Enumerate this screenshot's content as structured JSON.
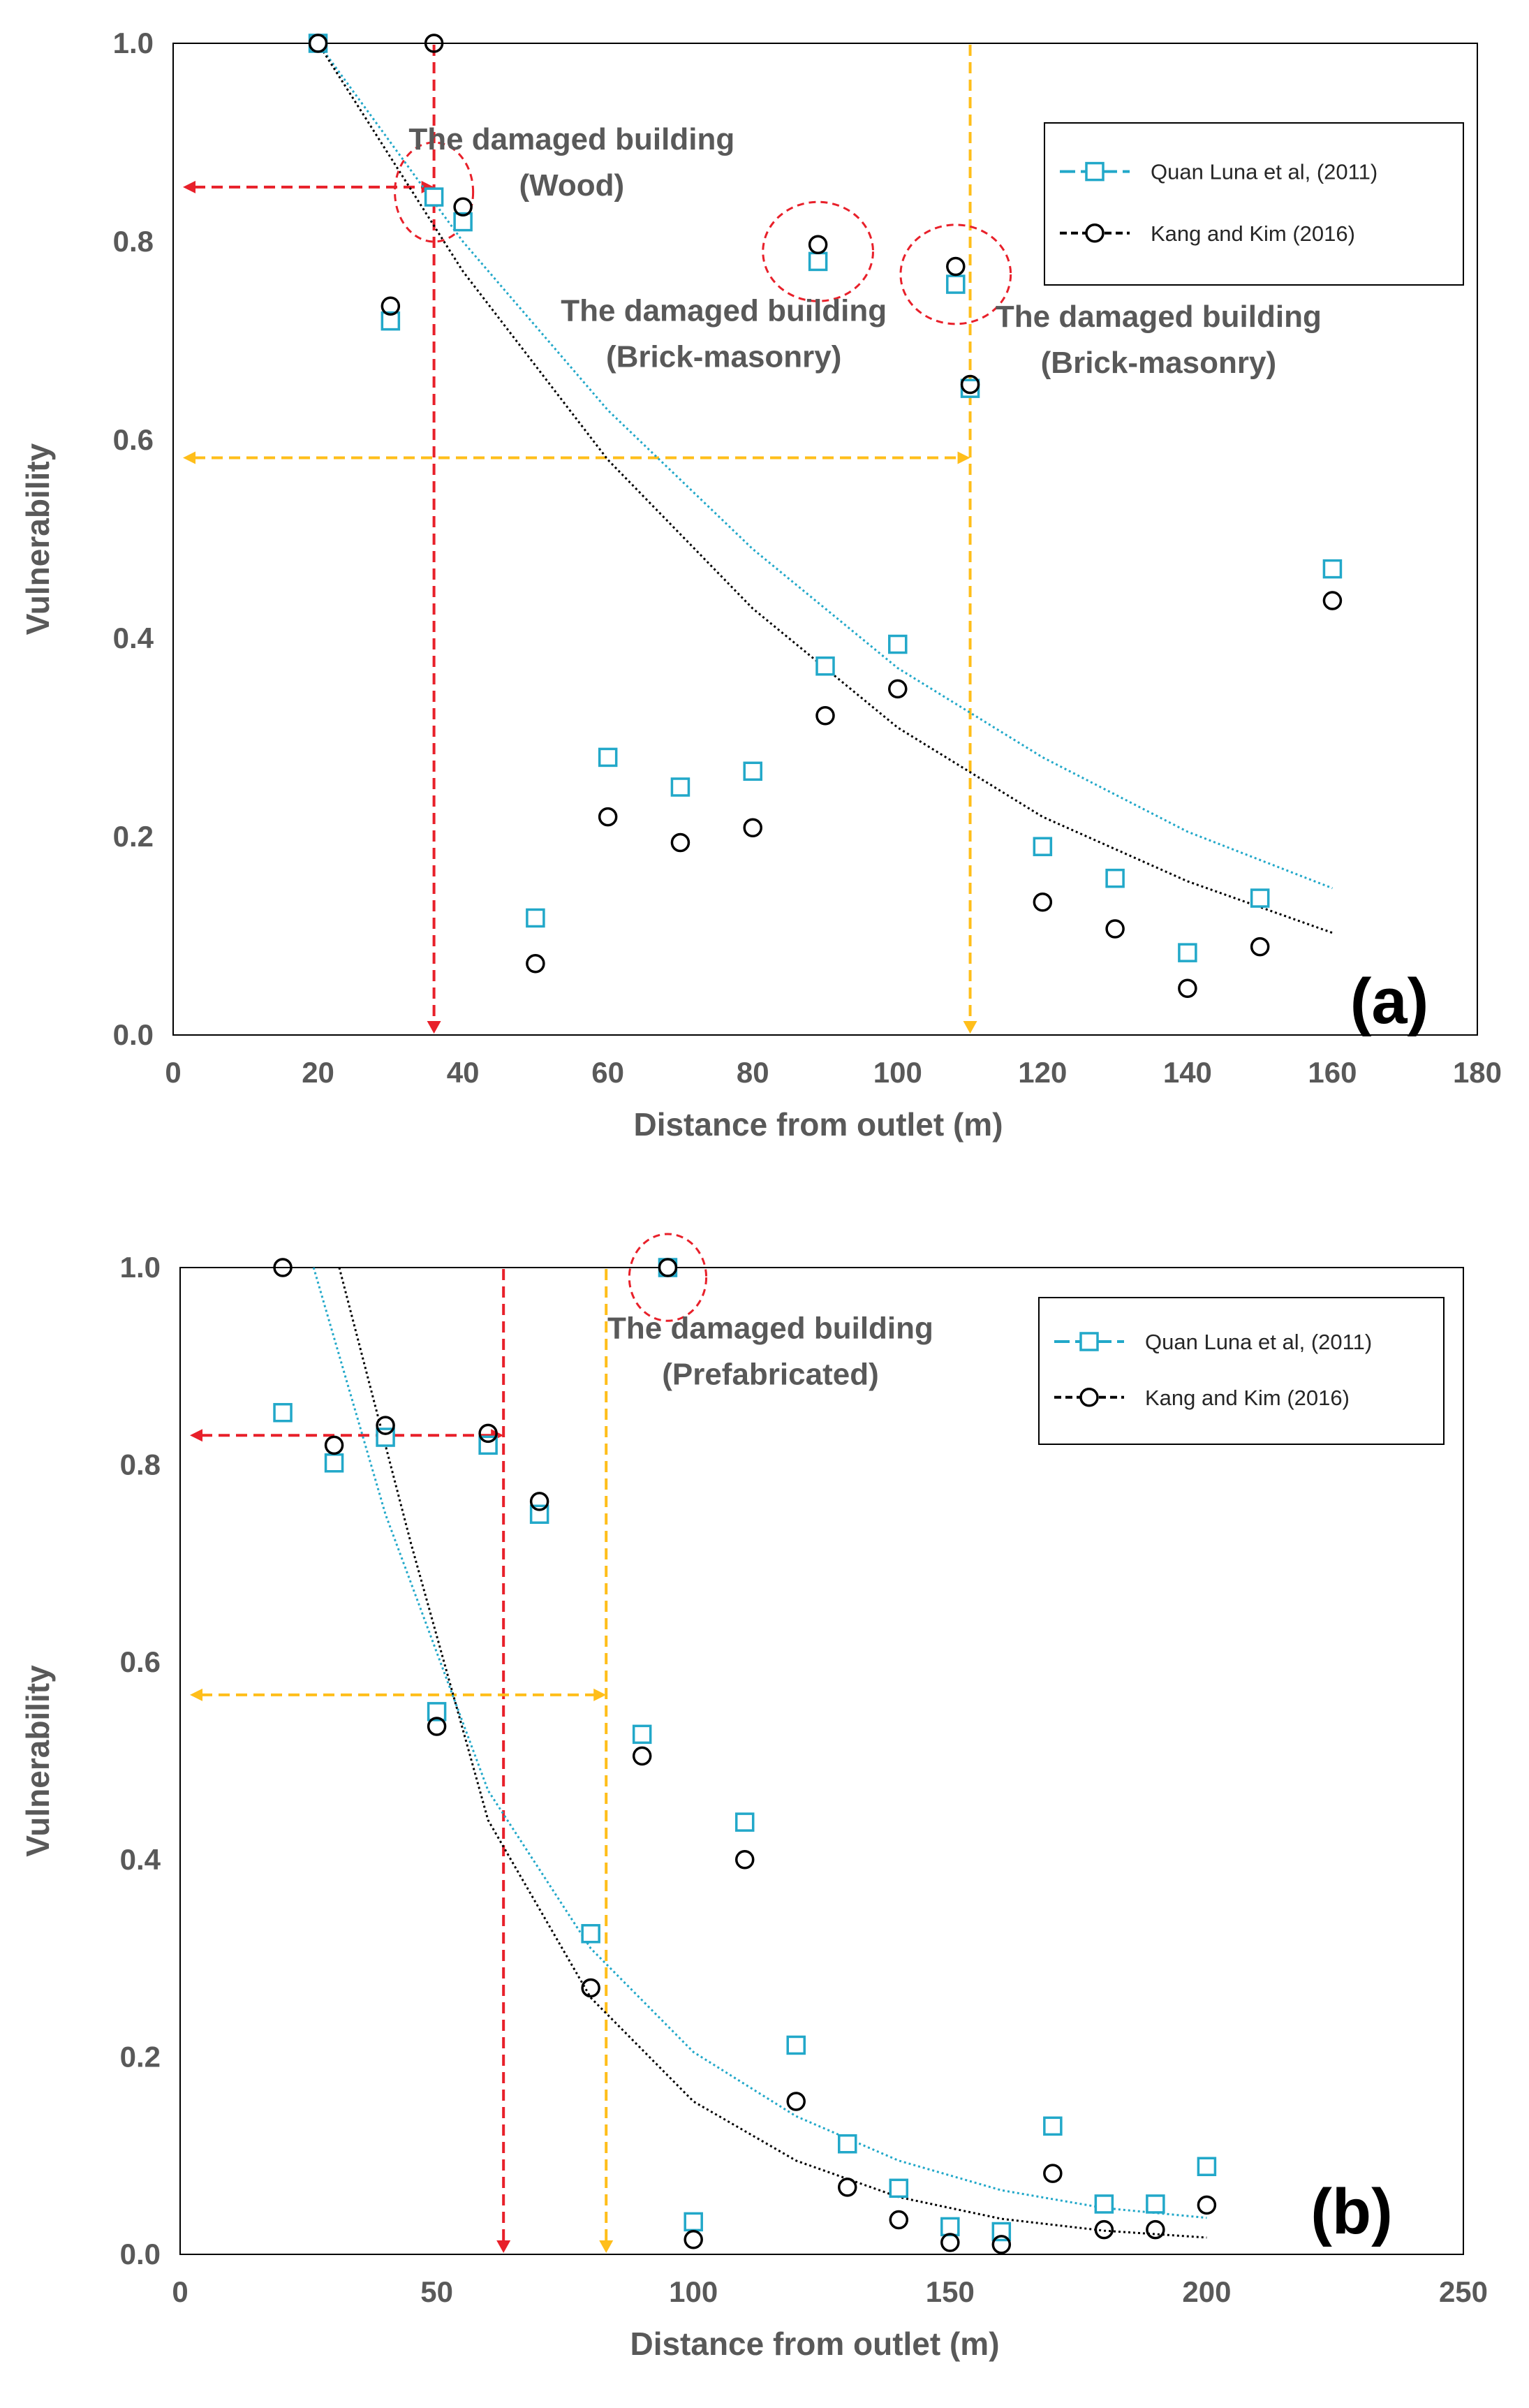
{
  "colors": {
    "quan": "#22a8c9",
    "kang": "#000000",
    "red": "#e8202a",
    "orange": "#ffbe1a",
    "text": "#595959"
  },
  "chart_data": [
    {
      "id": "a",
      "type": "scatter",
      "panel_label": "(a)",
      "xlabel": "Distance from outlet (m)",
      "ylabel": "Vulnerability",
      "xlim": [
        0,
        180
      ],
      "ylim": [
        0,
        1
      ],
      "xticks": [
        0,
        20,
        40,
        60,
        80,
        100,
        120,
        140,
        160,
        180
      ],
      "yticks": [
        0,
        0.2,
        0.4,
        0.6,
        0.8,
        1.0
      ],
      "grid": false,
      "legend_position": "top-right",
      "series": [
        {
          "key": "quan",
          "name": "Quan Luna et al, (2011)",
          "marker": "square",
          "points": [
            [
              20,
              1.0
            ],
            [
              36,
              0.845
            ],
            [
              40,
              0.82
            ],
            [
              30,
              0.72
            ],
            [
              50,
              0.118
            ],
            [
              60,
              0.28
            ],
            [
              70,
              0.25
            ],
            [
              80,
              0.266
            ],
            [
              89,
              0.78
            ],
            [
              90,
              0.372
            ],
            [
              100,
              0.394
            ],
            [
              108,
              0.757
            ],
            [
              110,
              0.652
            ],
            [
              120,
              0.19
            ],
            [
              130,
              0.158
            ],
            [
              140,
              0.083
            ],
            [
              150,
              0.138
            ],
            [
              160,
              0.47
            ]
          ],
          "trend": [
            [
              20,
              1.0
            ],
            [
              40,
              0.8
            ],
            [
              60,
              0.63
            ],
            [
              80,
              0.49
            ],
            [
              100,
              0.37
            ],
            [
              120,
              0.28
            ],
            [
              140,
              0.205
            ],
            [
              160,
              0.148
            ]
          ]
        },
        {
          "key": "kang",
          "name": "Kang and Kim (2016)",
          "marker": "circle",
          "points": [
            [
              20,
              1.0
            ],
            [
              36,
              1.0
            ],
            [
              40,
              0.835
            ],
            [
              30,
              0.735
            ],
            [
              50,
              0.072
            ],
            [
              60,
              0.22
            ],
            [
              70,
              0.194
            ],
            [
              80,
              0.209
            ],
            [
              89,
              0.797
            ],
            [
              90,
              0.322
            ],
            [
              100,
              0.349
            ],
            [
              108,
              0.775
            ],
            [
              110,
              0.656
            ],
            [
              120,
              0.134
            ],
            [
              130,
              0.107
            ],
            [
              140,
              0.047
            ],
            [
              150,
              0.089
            ],
            [
              160,
              0.438
            ]
          ],
          "trend": [
            [
              20,
              1.0
            ],
            [
              40,
              0.77
            ],
            [
              60,
              0.58
            ],
            [
              80,
              0.43
            ],
            [
              100,
              0.31
            ],
            [
              120,
              0.22
            ],
            [
              140,
              0.155
            ],
            [
              160,
              0.103
            ]
          ]
        }
      ],
      "reference_lines": [
        {
          "key": "red",
          "x": 36,
          "y": 0.855
        },
        {
          "key": "orange",
          "x": 110,
          "y": 0.582
        }
      ],
      "highlight_circles": [
        {
          "x": 36,
          "y": 0.85,
          "rx": 5.4,
          "ry": 0.05
        },
        {
          "x": 89,
          "y": 0.79,
          "rx": 7.6,
          "ry": 0.05
        },
        {
          "x": 108,
          "y": 0.767,
          "rx": 7.6,
          "ry": 0.05
        }
      ],
      "annotations": [
        {
          "lines": [
            "The damaged building",
            "(Wood)"
          ],
          "x": 55,
          "y": 0.893,
          "key": "wood"
        },
        {
          "lines": [
            "The damaged building",
            "(Brick-masonry)"
          ],
          "x": 76,
          "y": 0.72,
          "key": "brick1"
        },
        {
          "lines": [
            "The damaged building",
            "(Brick-masonry)"
          ],
          "x": 136,
          "y": 0.714,
          "key": "brick2"
        }
      ]
    },
    {
      "id": "b",
      "type": "scatter",
      "panel_label": "(b)",
      "xlabel": "Distance from outlet (m)",
      "ylabel": "Vulnerability",
      "xlim": [
        0,
        250
      ],
      "ylim": [
        0,
        1
      ],
      "xticks": [
        0,
        50,
        100,
        150,
        200,
        250
      ],
      "yticks": [
        0,
        0.2,
        0.4,
        0.6,
        0.8,
        1.0
      ],
      "grid": false,
      "legend_position": "top-right",
      "series": [
        {
          "key": "quan",
          "name": "Quan Luna et al, (2011)",
          "marker": "square",
          "points": [
            [
              20,
              0.853
            ],
            [
              30,
              0.802
            ],
            [
              40,
              0.828
            ],
            [
              50,
              0.55
            ],
            [
              60,
              0.82
            ],
            [
              70,
              0.75
            ],
            [
              80,
              0.325
            ],
            [
              90,
              0.527
            ],
            [
              95,
              1.0
            ],
            [
              100,
              0.033
            ],
            [
              110,
              0.438
            ],
            [
              120,
              0.212
            ],
            [
              130,
              0.112
            ],
            [
              140,
              0.067
            ],
            [
              150,
              0.028
            ],
            [
              160,
              0.023
            ],
            [
              170,
              0.13
            ],
            [
              180,
              0.051
            ],
            [
              190,
              0.051
            ],
            [
              200,
              0.089
            ]
          ],
          "trend": [
            [
              26,
              1.0
            ],
            [
              40,
              0.75
            ],
            [
              60,
              0.47
            ],
            [
              80,
              0.31
            ],
            [
              100,
              0.205
            ],
            [
              120,
              0.14
            ],
            [
              140,
              0.095
            ],
            [
              160,
              0.065
            ],
            [
              180,
              0.047
            ],
            [
              200,
              0.037
            ]
          ]
        },
        {
          "key": "kang",
          "name": "Kang and Kim (2016)",
          "marker": "circle",
          "points": [
            [
              20,
              1.0
            ],
            [
              30,
              0.82
            ],
            [
              40,
              0.84
            ],
            [
              50,
              0.535
            ],
            [
              60,
              0.832
            ],
            [
              70,
              0.763
            ],
            [
              80,
              0.27
            ],
            [
              90,
              0.505
            ],
            [
              95,
              1.0
            ],
            [
              100,
              0.015
            ],
            [
              110,
              0.4
            ],
            [
              120,
              0.155
            ],
            [
              130,
              0.068
            ],
            [
              140,
              0.035
            ],
            [
              150,
              0.012
            ],
            [
              160,
              0.01
            ],
            [
              170,
              0.082
            ],
            [
              180,
              0.025
            ],
            [
              190,
              0.025
            ],
            [
              200,
              0.05
            ]
          ],
          "trend": [
            [
              31,
              1.0
            ],
            [
              45,
              0.72
            ],
            [
              60,
              0.44
            ],
            [
              80,
              0.26
            ],
            [
              100,
              0.155
            ],
            [
              120,
              0.095
            ],
            [
              140,
              0.058
            ],
            [
              160,
              0.036
            ],
            [
              180,
              0.024
            ],
            [
              200,
              0.017
            ]
          ]
        }
      ],
      "reference_lines": [
        {
          "key": "red",
          "x": 63,
          "y": 0.83
        },
        {
          "key": "orange",
          "x": 83,
          "y": 0.567
        }
      ],
      "highlight_circles": [
        {
          "x": 95,
          "y": 0.99,
          "rx": 7.5,
          "ry": 0.044
        }
      ],
      "annotations": [
        {
          "lines": [
            "The damaged building",
            "(Prefabricated)"
          ],
          "x": 115,
          "y": 0.928,
          "key": "prefab"
        }
      ]
    }
  ]
}
